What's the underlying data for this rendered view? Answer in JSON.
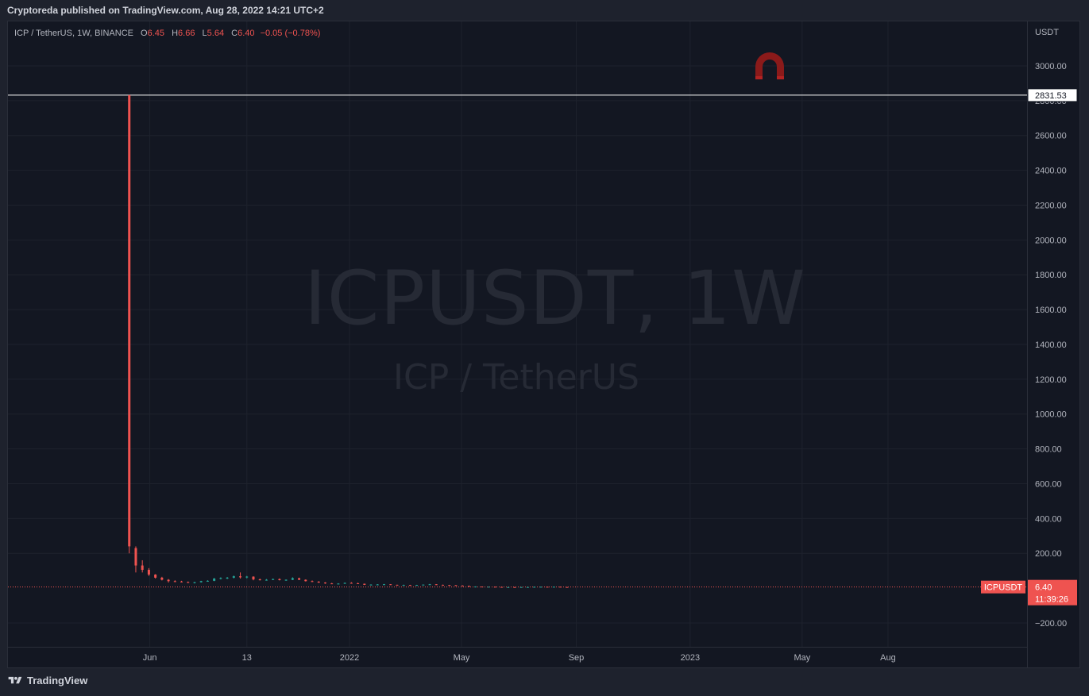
{
  "caption": "Cryptoreda published on TradingView.com, Aug 28, 2022 14:21 UTC+2",
  "legend": {
    "symbol": "ICP / TetherUS, 1W, BINANCE",
    "o_label": "O",
    "o_value": "6.45",
    "h_label": "H",
    "h_value": "6.66",
    "l_label": "L",
    "l_value": "5.64",
    "c_label": "C",
    "c_value": "6.40",
    "change": "−0.05 (−0.78%)"
  },
  "watermark": {
    "main": "ICPUSDT, 1W",
    "sub": "ICP / TetherUS"
  },
  "footer": {
    "brand": "TradingView"
  },
  "colors": {
    "up": "#26a69a",
    "down": "#ef5350",
    "background": "#131722",
    "grid": "#1e222d",
    "text": "#b2b5be",
    "logo_red": "#8b1a1a"
  },
  "icons": {
    "brand_logo": "tradingview-logo-icon",
    "magnet": "magnet-icon"
  },
  "chart_data": {
    "type": "candlestick",
    "currency": "USDT",
    "y_ticks": [
      3000,
      2800,
      2600,
      2400,
      2200,
      2000,
      1800,
      1600,
      1400,
      1200,
      1000,
      800,
      600,
      400,
      200,
      -200
    ],
    "y_tick_labels": [
      "3000.00",
      "2800.00",
      "2600.00",
      "2400.00",
      "2200.00",
      "2000.00",
      "1800.00",
      "1600.00",
      "1400.00",
      "1200.00",
      "1000.00",
      "800.00",
      "600.00",
      "400.00",
      "200.00",
      "−200.00"
    ],
    "ylim": [
      -337,
      3255
    ],
    "x_labels": [
      {
        "label": "Jun",
        "date": "2021-06-01"
      },
      {
        "label": "13",
        "date": "2021-09-13"
      },
      {
        "label": "2022",
        "date": "2022-01-01"
      },
      {
        "label": "May",
        "date": "2022-05-01"
      },
      {
        "label": "Sep",
        "date": "2022-09-01"
      },
      {
        "label": "2023",
        "date": "2023-01-01"
      },
      {
        "label": "May",
        "date": "2023-05-01"
      },
      {
        "label": "Aug",
        "date": "2023-08-01"
      }
    ],
    "xlim": [
      "2020-12-31",
      "2023-12-28"
    ],
    "horizontal_line": {
      "value": 2831.53,
      "label": "2831.53"
    },
    "last_price": {
      "value": 6.4,
      "label": "6.40",
      "countdown": "11:39:26",
      "symbol": "ICPUSDT"
    },
    "candles": [
      {
        "date": "2021-05-10",
        "o": 2831.53,
        "h": 2831.53,
        "l": 200,
        "c": 240
      },
      {
        "date": "2021-05-17",
        "o": 230,
        "h": 240,
        "l": 90,
        "c": 130
      },
      {
        "date": "2021-05-24",
        "o": 130,
        "h": 160,
        "l": 90,
        "c": 105
      },
      {
        "date": "2021-05-31",
        "o": 105,
        "h": 115,
        "l": 70,
        "c": 78
      },
      {
        "date": "2021-06-07",
        "o": 78,
        "h": 80,
        "l": 55,
        "c": 60
      },
      {
        "date": "2021-06-14",
        "o": 60,
        "h": 65,
        "l": 44,
        "c": 48
      },
      {
        "date": "2021-06-21",
        "o": 48,
        "h": 52,
        "l": 32,
        "c": 40
      },
      {
        "date": "2021-06-28",
        "o": 40,
        "h": 45,
        "l": 34,
        "c": 38
      },
      {
        "date": "2021-07-05",
        "o": 38,
        "h": 42,
        "l": 33,
        "c": 35
      },
      {
        "date": "2021-07-12",
        "o": 35,
        "h": 38,
        "l": 29,
        "c": 31
      },
      {
        "date": "2021-07-19",
        "o": 31,
        "h": 36,
        "l": 27,
        "c": 34
      },
      {
        "date": "2021-07-26",
        "o": 34,
        "h": 42,
        "l": 32,
        "c": 40
      },
      {
        "date": "2021-08-02",
        "o": 40,
        "h": 45,
        "l": 37,
        "c": 42
      },
      {
        "date": "2021-08-09",
        "o": 42,
        "h": 58,
        "l": 40,
        "c": 55
      },
      {
        "date": "2021-08-16",
        "o": 55,
        "h": 62,
        "l": 50,
        "c": 58
      },
      {
        "date": "2021-08-23",
        "o": 58,
        "h": 64,
        "l": 52,
        "c": 60
      },
      {
        "date": "2021-08-30",
        "o": 60,
        "h": 72,
        "l": 56,
        "c": 68
      },
      {
        "date": "2021-09-06",
        "o": 68,
        "h": 90,
        "l": 55,
        "c": 62
      },
      {
        "date": "2021-09-13",
        "o": 62,
        "h": 70,
        "l": 56,
        "c": 66
      },
      {
        "date": "2021-09-20",
        "o": 66,
        "h": 68,
        "l": 45,
        "c": 50
      },
      {
        "date": "2021-09-27",
        "o": 50,
        "h": 55,
        "l": 44,
        "c": 47
      },
      {
        "date": "2021-10-04",
        "o": 47,
        "h": 52,
        "l": 43,
        "c": 48
      },
      {
        "date": "2021-10-11",
        "o": 48,
        "h": 55,
        "l": 46,
        "c": 52
      },
      {
        "date": "2021-10-18",
        "o": 52,
        "h": 56,
        "l": 44,
        "c": 46
      },
      {
        "date": "2021-10-25",
        "o": 46,
        "h": 50,
        "l": 42,
        "c": 48
      },
      {
        "date": "2021-11-01",
        "o": 48,
        "h": 62,
        "l": 46,
        "c": 57
      },
      {
        "date": "2021-11-08",
        "o": 57,
        "h": 60,
        "l": 46,
        "c": 48
      },
      {
        "date": "2021-11-15",
        "o": 48,
        "h": 50,
        "l": 38,
        "c": 40
      },
      {
        "date": "2021-11-22",
        "o": 40,
        "h": 44,
        "l": 35,
        "c": 37
      },
      {
        "date": "2021-11-29",
        "o": 37,
        "h": 40,
        "l": 30,
        "c": 32
      },
      {
        "date": "2021-12-06",
        "o": 32,
        "h": 34,
        "l": 25,
        "c": 27
      },
      {
        "date": "2021-12-13",
        "o": 27,
        "h": 30,
        "l": 23,
        "c": 24
      },
      {
        "date": "2021-12-20",
        "o": 24,
        "h": 28,
        "l": 22,
        "c": 26
      },
      {
        "date": "2021-12-27",
        "o": 26,
        "h": 32,
        "l": 24,
        "c": 30
      },
      {
        "date": "2022-01-03",
        "o": 30,
        "h": 34,
        "l": 26,
        "c": 28
      },
      {
        "date": "2022-01-10",
        "o": 28,
        "h": 31,
        "l": 24,
        "c": 25
      },
      {
        "date": "2022-01-17",
        "o": 25,
        "h": 26,
        "l": 18,
        "c": 19
      },
      {
        "date": "2022-01-24",
        "o": 19,
        "h": 22,
        "l": 17,
        "c": 20
      },
      {
        "date": "2022-01-31",
        "o": 20,
        "h": 23,
        "l": 19,
        "c": 21
      },
      {
        "date": "2022-02-07",
        "o": 21,
        "h": 24,
        "l": 19,
        "c": 22
      },
      {
        "date": "2022-02-14",
        "o": 22,
        "h": 23,
        "l": 18,
        "c": 19
      },
      {
        "date": "2022-02-21",
        "o": 19,
        "h": 20,
        "l": 16,
        "c": 18
      },
      {
        "date": "2022-02-28",
        "o": 18,
        "h": 20,
        "l": 17,
        "c": 18
      },
      {
        "date": "2022-03-07",
        "o": 18,
        "h": 19,
        "l": 16,
        "c": 17
      },
      {
        "date": "2022-03-14",
        "o": 17,
        "h": 19,
        "l": 16,
        "c": 18
      },
      {
        "date": "2022-03-21",
        "o": 18,
        "h": 21,
        "l": 17,
        "c": 20
      },
      {
        "date": "2022-03-28",
        "o": 20,
        "h": 24,
        "l": 19,
        "c": 22
      },
      {
        "date": "2022-04-04",
        "o": 22,
        "h": 23,
        "l": 18,
        "c": 19
      },
      {
        "date": "2022-04-11",
        "o": 19,
        "h": 20,
        "l": 17,
        "c": 18
      },
      {
        "date": "2022-04-18",
        "o": 18,
        "h": 19,
        "l": 16,
        "c": 17
      },
      {
        "date": "2022-04-25",
        "o": 17,
        "h": 18,
        "l": 14,
        "c": 15
      },
      {
        "date": "2022-05-02",
        "o": 15,
        "h": 16,
        "l": 12,
        "c": 13
      },
      {
        "date": "2022-05-09",
        "o": 13,
        "h": 14,
        "l": 8,
        "c": 9
      },
      {
        "date": "2022-05-16",
        "o": 9,
        "h": 10,
        "l": 8,
        "c": 9
      },
      {
        "date": "2022-05-23",
        "o": 9,
        "h": 9.5,
        "l": 7.5,
        "c": 8
      },
      {
        "date": "2022-05-30",
        "o": 8,
        "h": 8.5,
        "l": 7.5,
        "c": 8
      },
      {
        "date": "2022-06-06",
        "o": 8,
        "h": 8.5,
        "l": 6.5,
        "c": 7
      },
      {
        "date": "2022-06-13",
        "o": 7,
        "h": 7.2,
        "l": 5,
        "c": 5.5
      },
      {
        "date": "2022-06-20",
        "o": 5.5,
        "h": 6.5,
        "l": 5.2,
        "c": 6
      },
      {
        "date": "2022-06-27",
        "o": 6,
        "h": 6.3,
        "l": 5.2,
        "c": 5.5
      },
      {
        "date": "2022-07-04",
        "o": 5.5,
        "h": 6.5,
        "l": 5.2,
        "c": 6.2
      },
      {
        "date": "2022-07-11",
        "o": 6.2,
        "h": 6.8,
        "l": 5.8,
        "c": 6.5
      },
      {
        "date": "2022-07-18",
        "o": 6.5,
        "h": 8.5,
        "l": 6.3,
        "c": 7.5
      },
      {
        "date": "2022-07-25",
        "o": 7.5,
        "h": 8,
        "l": 6.8,
        "c": 7.8
      },
      {
        "date": "2022-08-01",
        "o": 7.8,
        "h": 8.2,
        "l": 7,
        "c": 7.5
      },
      {
        "date": "2022-08-08",
        "o": 7.5,
        "h": 8.5,
        "l": 7.2,
        "c": 8
      },
      {
        "date": "2022-08-15",
        "o": 8,
        "h": 8.2,
        "l": 6.8,
        "c": 7
      },
      {
        "date": "2022-08-22",
        "o": 6.45,
        "h": 6.66,
        "l": 5.64,
        "c": 6.4
      }
    ]
  }
}
